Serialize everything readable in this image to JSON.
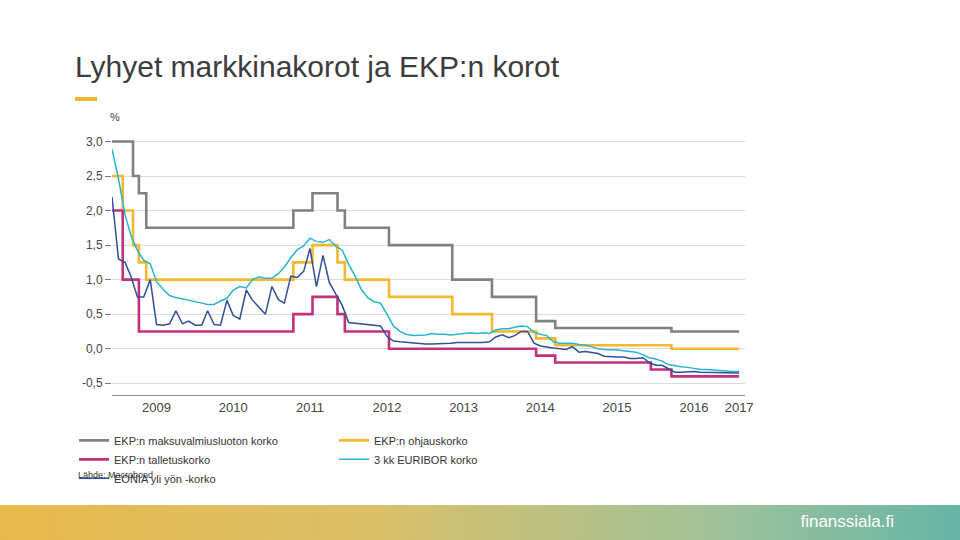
{
  "chart_data": {
    "type": "line",
    "title": "Lyhyet markkinakorot ja EKP:n korot",
    "ylabel": "%",
    "source": "Lähde: Macrobond",
    "grid": true,
    "legend": "bottom",
    "xlim": [
      "2008-12-01",
      "2017-03-01"
    ],
    "xticks": [
      {
        "value": "2009-07-01",
        "label": "2009"
      },
      {
        "value": "2010-07-01",
        "label": "2010"
      },
      {
        "value": "2011-07-01",
        "label": "2011"
      },
      {
        "value": "2012-07-01",
        "label": "2012"
      },
      {
        "value": "2013-07-01",
        "label": "2013"
      },
      {
        "value": "2014-07-01",
        "label": "2014"
      },
      {
        "value": "2015-07-01",
        "label": "2015"
      },
      {
        "value": "2016-07-01",
        "label": "2016"
      },
      {
        "value": "2017-02-01",
        "label": "2017"
      }
    ],
    "ylim": [
      -0.67,
      3.05
    ],
    "yticks": [
      {
        "value": -0.5,
        "label": "-0,5"
      },
      {
        "value": 0,
        "label": "0,0"
      },
      {
        "value": 0.5,
        "label": "0,5"
      },
      {
        "value": 1,
        "label": "1,0"
      },
      {
        "value": 1.5,
        "label": "1,5"
      },
      {
        "value": 2,
        "label": "2,0"
      },
      {
        "value": 2.5,
        "label": "2,5"
      },
      {
        "value": 3,
        "label": "3,0"
      }
    ],
    "series": [
      {
        "name": "EKP:n maksuvalmiusluoton korko",
        "color": "#808080",
        "line_style": "step",
        "x": [
          "2008-12-01",
          "2009-03-11",
          "2009-04-08",
          "2009-05-13",
          "2011-04-13",
          "2011-07-13",
          "2011-11-09",
          "2011-12-14",
          "2012-07-11",
          "2013-05-08",
          "2013-11-13",
          "2014-06-11",
          "2014-09-10",
          "2016-03-16",
          "2017-02-01"
        ],
        "values": [
          3.0,
          2.5,
          2.25,
          1.75,
          2.0,
          2.25,
          2.0,
          1.75,
          1.5,
          1.0,
          0.75,
          0.4,
          0.3,
          0.25,
          0.25
        ]
      },
      {
        "name": "EKP:n ohjauskorko",
        "color": "#f5b82e",
        "line_style": "step",
        "x": [
          "2008-12-01",
          "2009-01-21",
          "2009-03-11",
          "2009-04-08",
          "2009-05-13",
          "2011-04-13",
          "2011-07-13",
          "2011-11-09",
          "2011-12-14",
          "2012-07-11",
          "2013-05-08",
          "2013-11-13",
          "2014-06-11",
          "2014-09-10",
          "2016-03-16",
          "2017-02-01"
        ],
        "values": [
          2.5,
          2.0,
          1.5,
          1.25,
          1.0,
          1.25,
          1.5,
          1.25,
          1.0,
          0.75,
          0.5,
          0.25,
          0.15,
          0.05,
          0.0,
          0.0
        ]
      },
      {
        "name": "EKP:n talletuskorko",
        "color": "#c2317a",
        "line_style": "step",
        "x": [
          "2008-12-01",
          "2009-01-21",
          "2009-04-08",
          "2011-04-13",
          "2011-07-13",
          "2011-11-09",
          "2011-12-14",
          "2012-07-11",
          "2014-06-11",
          "2014-09-10",
          "2015-12-09",
          "2016-03-16",
          "2017-02-01"
        ],
        "values": [
          2.0,
          1.0,
          0.25,
          0.5,
          0.75,
          0.5,
          0.25,
          0.0,
          -0.1,
          -0.2,
          -0.3,
          -0.4,
          -0.4
        ]
      },
      {
        "name": "3 kk EURIBOR korko",
        "color": "#29b3d1",
        "line_style": "solid",
        "x": [
          "2008-12",
          "2009-01",
          "2009-02",
          "2009-03",
          "2009-04",
          "2009-05",
          "2009-06",
          "2009-07",
          "2009-08",
          "2009-09",
          "2009-10",
          "2009-11",
          "2009-12",
          "2010-01",
          "2010-02",
          "2010-03",
          "2010-04",
          "2010-05",
          "2010-06",
          "2010-07",
          "2010-08",
          "2010-09",
          "2010-10",
          "2010-11",
          "2010-12",
          "2011-01",
          "2011-02",
          "2011-03",
          "2011-04",
          "2011-05",
          "2011-06",
          "2011-07",
          "2011-08",
          "2011-09",
          "2011-10",
          "2011-11",
          "2011-12",
          "2012-01",
          "2012-02",
          "2012-03",
          "2012-04",
          "2012-05",
          "2012-06",
          "2012-07",
          "2012-08",
          "2012-09",
          "2012-10",
          "2012-11",
          "2012-12",
          "2013-01",
          "2013-02",
          "2013-03",
          "2013-04",
          "2013-05",
          "2013-06",
          "2013-07",
          "2013-08",
          "2013-09",
          "2013-10",
          "2013-11",
          "2013-12",
          "2014-01",
          "2014-02",
          "2014-03",
          "2014-04",
          "2014-05",
          "2014-06",
          "2014-07",
          "2014-08",
          "2014-09",
          "2014-10",
          "2014-11",
          "2014-12",
          "2015-01",
          "2015-02",
          "2015-03",
          "2015-04",
          "2015-05",
          "2015-06",
          "2015-07",
          "2015-08",
          "2015-09",
          "2015-10",
          "2015-11",
          "2015-12",
          "2016-01",
          "2016-02",
          "2016-03",
          "2016-04",
          "2016-05",
          "2016-06",
          "2016-07",
          "2016-08",
          "2016-09",
          "2016-10",
          "2016-11",
          "2016-12",
          "2017-01",
          "2017-02"
        ],
        "values": [
          2.89,
          2.46,
          1.94,
          1.64,
          1.42,
          1.28,
          1.23,
          0.97,
          0.86,
          0.77,
          0.74,
          0.72,
          0.71,
          0.68,
          0.66,
          0.64,
          0.64,
          0.69,
          0.73,
          0.85,
          0.9,
          0.88,
          1.0,
          1.04,
          1.02,
          1.02,
          1.09,
          1.18,
          1.32,
          1.43,
          1.49,
          1.6,
          1.55,
          1.54,
          1.58,
          1.48,
          1.43,
          1.22,
          1.05,
          0.86,
          0.74,
          0.68,
          0.66,
          0.5,
          0.33,
          0.25,
          0.21,
          0.19,
          0.19,
          0.2,
          0.22,
          0.21,
          0.21,
          0.2,
          0.21,
          0.22,
          0.23,
          0.22,
          0.23,
          0.22,
          0.27,
          0.29,
          0.29,
          0.31,
          0.33,
          0.32,
          0.24,
          0.21,
          0.19,
          0.1,
          0.08,
          0.08,
          0.08,
          0.06,
          0.05,
          0.03,
          0.0,
          -0.01,
          -0.01,
          -0.02,
          -0.03,
          -0.04,
          -0.05,
          -0.09,
          -0.13,
          -0.15,
          -0.18,
          -0.23,
          -0.25,
          -0.26,
          -0.27,
          -0.29,
          -0.3,
          -0.3,
          -0.31,
          -0.31,
          -0.32,
          -0.33,
          -0.33
        ]
      },
      {
        "name": "EONIA yli yön -korko",
        "color": "#2f4f9a",
        "line_style": "solid",
        "x": [
          "2008-12",
          "2009-01",
          "2009-02",
          "2009-03",
          "2009-04",
          "2009-05",
          "2009-06",
          "2009-07",
          "2009-08",
          "2009-09",
          "2009-10",
          "2009-11",
          "2009-12",
          "2010-01",
          "2010-02",
          "2010-03",
          "2010-04",
          "2010-05",
          "2010-06",
          "2010-07",
          "2010-08",
          "2010-09",
          "2010-10",
          "2010-11",
          "2010-12",
          "2011-01",
          "2011-02",
          "2011-03",
          "2011-04",
          "2011-05",
          "2011-06",
          "2011-07",
          "2011-08",
          "2011-09",
          "2011-10",
          "2011-11",
          "2011-12",
          "2012-01",
          "2012-02",
          "2012-03",
          "2012-04",
          "2012-05",
          "2012-06",
          "2012-07",
          "2012-08",
          "2012-09",
          "2012-10",
          "2012-11",
          "2012-12",
          "2013-01",
          "2013-02",
          "2013-03",
          "2013-04",
          "2013-05",
          "2013-06",
          "2013-07",
          "2013-08",
          "2013-09",
          "2013-10",
          "2013-11",
          "2013-12",
          "2014-01",
          "2014-02",
          "2014-03",
          "2014-04",
          "2014-05",
          "2014-06",
          "2014-07",
          "2014-08",
          "2014-09",
          "2014-10",
          "2014-11",
          "2014-12",
          "2015-01",
          "2015-02",
          "2015-03",
          "2015-04",
          "2015-05",
          "2015-06",
          "2015-07",
          "2015-08",
          "2015-09",
          "2015-10",
          "2015-11",
          "2015-12",
          "2016-01",
          "2016-02",
          "2016-03",
          "2016-04",
          "2016-05",
          "2016-06",
          "2016-07",
          "2016-08",
          "2016-09",
          "2016-10",
          "2016-11",
          "2016-12",
          "2017-01",
          "2017-02"
        ],
        "values": [
          2.2,
          1.3,
          1.25,
          1.05,
          0.75,
          0.75,
          1.0,
          0.35,
          0.34,
          0.36,
          0.55,
          0.36,
          0.4,
          0.34,
          0.34,
          0.55,
          0.35,
          0.34,
          0.7,
          0.48,
          0.43,
          0.85,
          0.7,
          0.59,
          0.5,
          0.9,
          0.71,
          0.66,
          1.05,
          1.03,
          1.12,
          1.45,
          0.9,
          1.35,
          0.96,
          0.79,
          0.63,
          0.38,
          0.37,
          0.36,
          0.35,
          0.34,
          0.33,
          0.18,
          0.11,
          0.1,
          0.09,
          0.08,
          0.07,
          0.07,
          0.07,
          0.07,
          0.08,
          0.08,
          0.09,
          0.09,
          0.08,
          0.08,
          0.09,
          0.1,
          0.17,
          0.2,
          0.16,
          0.19,
          0.25,
          0.25,
          0.08,
          0.04,
          0.02,
          0.01,
          0.0,
          -0.01,
          0.03,
          -0.05,
          -0.04,
          -0.05,
          -0.07,
          -0.11,
          -0.12,
          -0.12,
          -0.12,
          -0.14,
          -0.14,
          -0.13,
          -0.2,
          -0.24,
          -0.24,
          -0.29,
          -0.34,
          -0.34,
          -0.33,
          -0.33,
          -0.34,
          -0.34,
          -0.35,
          -0.35,
          -0.35,
          -0.35,
          -0.35
        ]
      }
    ]
  },
  "footer": "finanssiala.fi"
}
